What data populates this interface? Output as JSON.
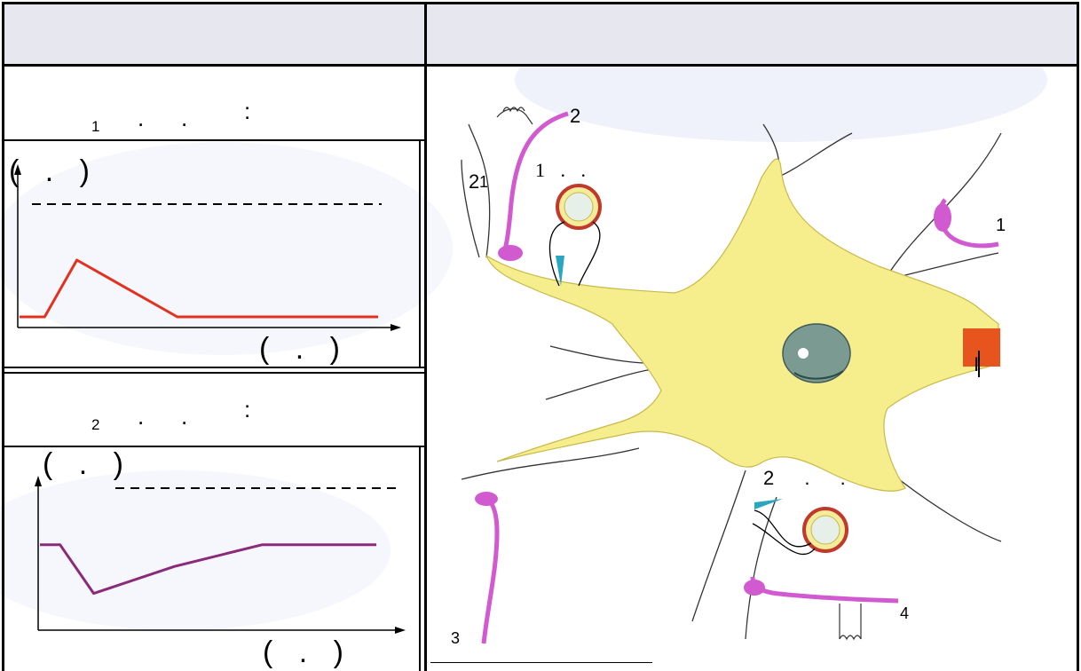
{
  "table": {
    "header": {
      "left": "",
      "right": ""
    }
  },
  "experiment1": {
    "title_parts": [
      "1",
      ".",
      ".",
      ":"
    ],
    "graph": {
      "y_axis_label": "( . )",
      "x_axis_label": "( . )"
    }
  },
  "experiment2": {
    "title_parts": [
      "2",
      ".",
      ".",
      ":"
    ],
    "graph": {
      "y_axis_label": "( . )",
      "x_axis_label": "( . )"
    }
  },
  "chart_data": [
    {
      "type": "line",
      "title": "",
      "xlabel": "( . )",
      "ylabel": "( . )",
      "threshold_line": "dashed",
      "series": [
        {
          "color": "#e2321f",
          "x": [
            0,
            0.07,
            0.16,
            0.44,
            1.0
          ],
          "y": [
            0.2,
            0.2,
            0.52,
            0.2,
            0.2
          ]
        }
      ]
    },
    {
      "type": "line",
      "title": "",
      "xlabel": "( . )",
      "ylabel": "( . )",
      "threshold_line": "dashed",
      "series": [
        {
          "color": "#8b2a78",
          "x": [
            0,
            0.06,
            0.16,
            0.4,
            0.66,
            1.0
          ],
          "y": [
            0.58,
            0.58,
            0.22,
            0.42,
            0.58,
            0.58
          ]
        }
      ]
    }
  ],
  "diagram": {
    "labels": {
      "top_synapse": "2",
      "top_left_a": "2",
      "top_left_b": "1",
      "electrode1": "1 . .",
      "right_synapse": "1",
      "electrode2": "2 . .",
      "bottom_right_synapse": "4",
      "bottom_left_synapse": "3",
      "axon_marker": "I"
    },
    "colors": {
      "cell_body": "#f6ee8c",
      "axon_hillock": "#e8541e",
      "nucleus": "#7a9a92",
      "presynaptic": "#d25ad0",
      "electrode": "#2aa6c0"
    }
  }
}
